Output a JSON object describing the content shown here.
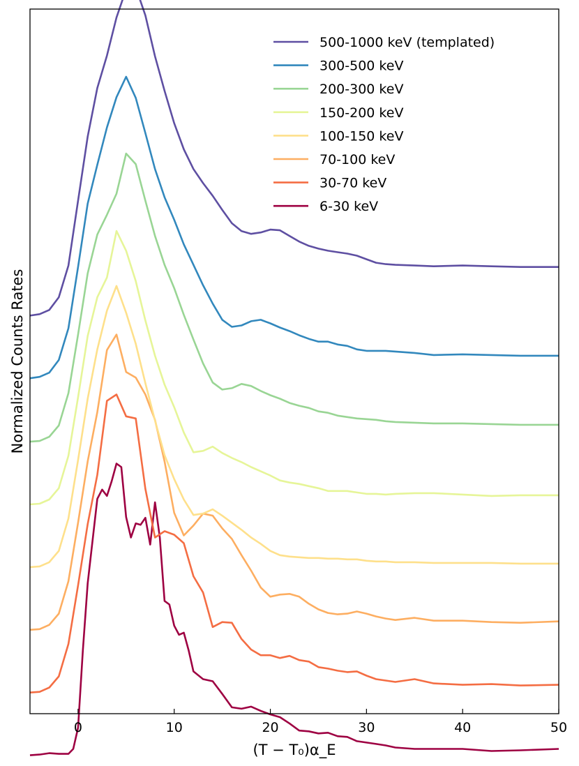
{
  "chart_data": {
    "type": "line",
    "title": "",
    "xlabel": "(T − T₀)α_E",
    "ylabel": "Normalized Counts Rates",
    "xlim": [
      -5,
      50
    ],
    "ylim": [
      0,
      1
    ],
    "xticks": [
      "0",
      "10",
      "20",
      "30",
      "40",
      "50"
    ],
    "legend_position": "top-right",
    "grid": false,
    "series": [
      {
        "name": "500-1000 keV (templated)",
        "color": "#5e4fa2",
        "offset": 0.563,
        "x": [
          -5,
          -4,
          -3,
          -2,
          -1,
          0,
          1,
          2,
          3,
          4,
          5,
          6,
          7,
          8,
          9,
          10,
          11,
          12,
          13,
          14,
          15,
          16,
          17,
          18,
          19,
          20,
          21,
          22,
          23,
          24,
          25,
          26,
          27,
          28,
          29,
          30,
          31,
          32,
          33,
          35,
          37,
          40,
          43,
          46,
          50
        ],
        "y": [
          0.002,
          0.004,
          0.01,
          0.028,
          0.073,
          0.165,
          0.256,
          0.325,
          0.371,
          0.425,
          0.465,
          0.468,
          0.428,
          0.37,
          0.321,
          0.275,
          0.238,
          0.21,
          0.19,
          0.172,
          0.152,
          0.133,
          0.122,
          0.118,
          0.12,
          0.124,
          0.123,
          0.115,
          0.107,
          0.101,
          0.097,
          0.094,
          0.092,
          0.09,
          0.087,
          0.082,
          0.077,
          0.075,
          0.074,
          0.073,
          0.072,
          0.073,
          0.072,
          0.071,
          0.071
        ]
      },
      {
        "name": "300-500 keV",
        "color": "#3288bd",
        "offset": 0.474,
        "x": [
          -5,
          -4,
          -3,
          -2,
          -1,
          0,
          1,
          2,
          3,
          4,
          5,
          6,
          7,
          8,
          9,
          10,
          11,
          12,
          13,
          14,
          15,
          16,
          17,
          18,
          19,
          20,
          21,
          22,
          23,
          24,
          25,
          26,
          27,
          28,
          29,
          30,
          31,
          32,
          33,
          35,
          37,
          40,
          43,
          46,
          50
        ],
        "y": [
          0.002,
          0.004,
          0.01,
          0.028,
          0.073,
          0.16,
          0.25,
          0.305,
          0.358,
          0.401,
          0.43,
          0.4,
          0.35,
          0.299,
          0.259,
          0.227,
          0.192,
          0.163,
          0.134,
          0.108,
          0.085,
          0.075,
          0.077,
          0.083,
          0.085,
          0.08,
          0.074,
          0.069,
          0.063,
          0.058,
          0.054,
          0.054,
          0.05,
          0.048,
          0.043,
          0.041,
          0.041,
          0.041,
          0.04,
          0.038,
          0.035,
          0.036,
          0.035,
          0.034,
          0.034
        ]
      },
      {
        "name": "200-300 keV",
        "color": "#99d594",
        "offset": 0.385,
        "x": [
          -5,
          -4,
          -3,
          -2,
          -1,
          0,
          1,
          2,
          3,
          4,
          5,
          6,
          7,
          8,
          9,
          10,
          11,
          12,
          13,
          14,
          15,
          16,
          17,
          18,
          19,
          20,
          21,
          22,
          23,
          24,
          25,
          26,
          27,
          28,
          29,
          30,
          31,
          32,
          33,
          35,
          37,
          40,
          43,
          46,
          50
        ],
        "y": [
          0.001,
          0.002,
          0.008,
          0.024,
          0.07,
          0.153,
          0.24,
          0.295,
          0.323,
          0.353,
          0.41,
          0.395,
          0.343,
          0.293,
          0.252,
          0.219,
          0.181,
          0.146,
          0.112,
          0.085,
          0.075,
          0.077,
          0.083,
          0.08,
          0.073,
          0.067,
          0.062,
          0.056,
          0.052,
          0.049,
          0.044,
          0.042,
          0.038,
          0.036,
          0.034,
          0.033,
          0.032,
          0.03,
          0.029,
          0.028,
          0.027,
          0.027,
          0.026,
          0.025,
          0.025
        ]
      },
      {
        "name": "150-200 keV",
        "color": "#e6f598",
        "offset": 0.296,
        "x": [
          -5,
          -4,
          -3,
          -2,
          -1,
          0,
          1,
          2,
          3,
          4,
          5,
          6,
          7,
          8,
          9,
          10,
          11,
          12,
          13,
          14,
          15,
          16,
          17,
          18,
          19,
          20,
          21,
          22,
          23,
          24,
          25,
          26,
          27,
          28,
          29,
          30,
          31,
          32,
          33,
          35,
          37,
          40,
          43,
          46,
          50
        ],
        "y": [
          0.001,
          0.002,
          0.008,
          0.024,
          0.07,
          0.153,
          0.24,
          0.295,
          0.323,
          0.389,
          0.361,
          0.318,
          0.262,
          0.212,
          0.171,
          0.139,
          0.103,
          0.075,
          0.077,
          0.083,
          0.074,
          0.067,
          0.061,
          0.054,
          0.048,
          0.042,
          0.035,
          0.032,
          0.03,
          0.027,
          0.024,
          0.02,
          0.02,
          0.02,
          0.018,
          0.016,
          0.016,
          0.015,
          0.016,
          0.017,
          0.017,
          0.015,
          0.013,
          0.014,
          0.014
        ]
      },
      {
        "name": "100-150 keV",
        "color": "#fee08b",
        "offset": 0.207,
        "x": [
          -5,
          -4,
          -3,
          -2,
          -1,
          0,
          1,
          2,
          3,
          4,
          5,
          6,
          7,
          8,
          9,
          10,
          11,
          12,
          13,
          14,
          15,
          16,
          17,
          18,
          19,
          20,
          21,
          22,
          23,
          24,
          25,
          26,
          27,
          28,
          29,
          30,
          31,
          32,
          33,
          35,
          37,
          40,
          43,
          46,
          50
        ],
        "y": [
          0.001,
          0.002,
          0.008,
          0.024,
          0.07,
          0.153,
          0.24,
          0.31,
          0.365,
          0.4,
          0.362,
          0.318,
          0.262,
          0.209,
          0.16,
          0.126,
          0.097,
          0.075,
          0.077,
          0.083,
          0.074,
          0.064,
          0.054,
          0.043,
          0.034,
          0.024,
          0.018,
          0.016,
          0.015,
          0.014,
          0.014,
          0.013,
          0.013,
          0.012,
          0.012,
          0.01,
          0.009,
          0.009,
          0.008,
          0.008,
          0.007,
          0.007,
          0.007,
          0.006,
          0.006
        ]
      },
      {
        "name": "70-100 keV",
        "color": "#fdae61",
        "offset": 0.118,
        "x": [
          -5,
          -4,
          -3,
          -2,
          -1,
          0,
          1,
          2,
          3,
          4,
          5,
          6,
          7,
          8,
          9,
          10,
          11,
          12,
          13,
          14,
          15,
          16,
          17,
          18,
          19,
          20,
          21,
          22,
          23,
          24,
          25,
          26,
          27,
          28,
          29,
          30,
          31,
          32,
          33,
          35,
          37,
          40,
          43,
          46,
          50
        ],
        "y": [
          0.001,
          0.002,
          0.008,
          0.024,
          0.07,
          0.153,
          0.24,
          0.31,
          0.398,
          0.42,
          0.367,
          0.359,
          0.335,
          0.299,
          0.24,
          0.167,
          0.135,
          0.149,
          0.166,
          0.163,
          0.145,
          0.13,
          0.107,
          0.085,
          0.061,
          0.048,
          0.051,
          0.052,
          0.048,
          0.038,
          0.03,
          0.025,
          0.023,
          0.024,
          0.027,
          0.024,
          0.02,
          0.017,
          0.015,
          0.018,
          0.014,
          0.014,
          0.012,
          0.011,
          0.013
        ]
      },
      {
        "name": "30-70 keV",
        "color": "#f46d43",
        "offset": 0.029,
        "x": [
          -5,
          -4,
          -3,
          -2,
          -1,
          0,
          1,
          2,
          3,
          4,
          5,
          6,
          7,
          8,
          9,
          10,
          11,
          12,
          13,
          14,
          15,
          16,
          17,
          18,
          19,
          20,
          21,
          22,
          23,
          24,
          25,
          26,
          27,
          28,
          29,
          30,
          31,
          32,
          33,
          35,
          37,
          40,
          43,
          46,
          50
        ],
        "y": [
          0.001,
          0.002,
          0.008,
          0.024,
          0.07,
          0.153,
          0.24,
          0.31,
          0.415,
          0.424,
          0.393,
          0.39,
          0.29,
          0.221,
          0.23,
          0.225,
          0.213,
          0.166,
          0.143,
          0.094,
          0.101,
          0.1,
          0.077,
          0.062,
          0.054,
          0.054,
          0.05,
          0.053,
          0.047,
          0.045,
          0.037,
          0.035,
          0.032,
          0.03,
          0.031,
          0.025,
          0.02,
          0.018,
          0.016,
          0.02,
          0.014,
          0.012,
          0.013,
          0.011,
          0.012
        ]
      },
      {
        "name": "6-30 keV",
        "color": "#9e0142",
        "offset": -0.06,
        "x": [
          -5,
          -4,
          -3,
          -2,
          -1,
          -0.5,
          0,
          0.5,
          1,
          2,
          2.5,
          3,
          3.5,
          4,
          4.5,
          5,
          5.5,
          6,
          6.5,
          7,
          7.5,
          8,
          8.5,
          9,
          9.5,
          10,
          10.5,
          11,
          11.5,
          12,
          13,
          14,
          15,
          16,
          17,
          18,
          19,
          20,
          21,
          22,
          23,
          24,
          25,
          26,
          27,
          28,
          29,
          30,
          31,
          32,
          33,
          35,
          37,
          40,
          43,
          46,
          50
        ],
        "y": [
          0.001,
          0.002,
          0.004,
          0.003,
          0.003,
          0.01,
          0.04,
          0.15,
          0.245,
          0.365,
          0.378,
          0.369,
          0.39,
          0.415,
          0.41,
          0.339,
          0.31,
          0.33,
          0.328,
          0.338,
          0.3,
          0.36,
          0.31,
          0.22,
          0.215,
          0.185,
          0.172,
          0.175,
          0.15,
          0.12,
          0.109,
          0.106,
          0.088,
          0.069,
          0.067,
          0.07,
          0.064,
          0.059,
          0.055,
          0.046,
          0.036,
          0.035,
          0.032,
          0.033,
          0.028,
          0.027,
          0.021,
          0.019,
          0.017,
          0.015,
          0.012,
          0.01,
          0.01,
          0.01,
          0.007,
          0.008,
          0.01
        ]
      }
    ]
  }
}
